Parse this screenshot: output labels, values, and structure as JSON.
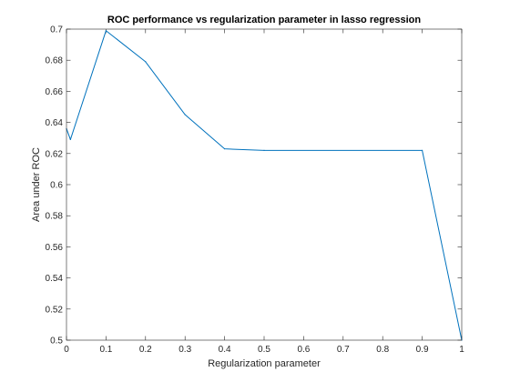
{
  "chart_data": {
    "type": "line",
    "title": "ROC performance vs regularization parameter in lasso regression",
    "xlabel": "Regularization parameter",
    "ylabel": "Area under ROC",
    "xlim": [
      0,
      1
    ],
    "ylim": [
      0.5,
      0.7
    ],
    "xticks": [
      0,
      0.1,
      0.2,
      0.3,
      0.4,
      0.5,
      0.6,
      0.7,
      0.8,
      0.9,
      1
    ],
    "xtick_labels": [
      "0",
      "0.1",
      "0.2",
      "0.3",
      "0.4",
      "0.5",
      "0.6",
      "0.7",
      "0.8",
      "0.9",
      "1"
    ],
    "yticks": [
      0.5,
      0.52,
      0.54,
      0.56,
      0.58,
      0.6,
      0.62,
      0.64,
      0.66,
      0.68,
      0.7
    ],
    "ytick_labels": [
      "0.5",
      "0.52",
      "0.54",
      "0.56",
      "0.58",
      "0.6",
      "0.62",
      "0.64",
      "0.66",
      "0.68",
      "0.7"
    ],
    "grid": false,
    "series": [
      {
        "color": "#0072bd",
        "x": [
          0,
          0.01,
          0.1,
          0.2,
          0.3,
          0.4,
          0.5,
          0.9,
          1
        ],
        "y": [
          0.636,
          0.629,
          0.699,
          0.679,
          0.645,
          0.623,
          0.622,
          0.622,
          0.5
        ]
      }
    ]
  }
}
